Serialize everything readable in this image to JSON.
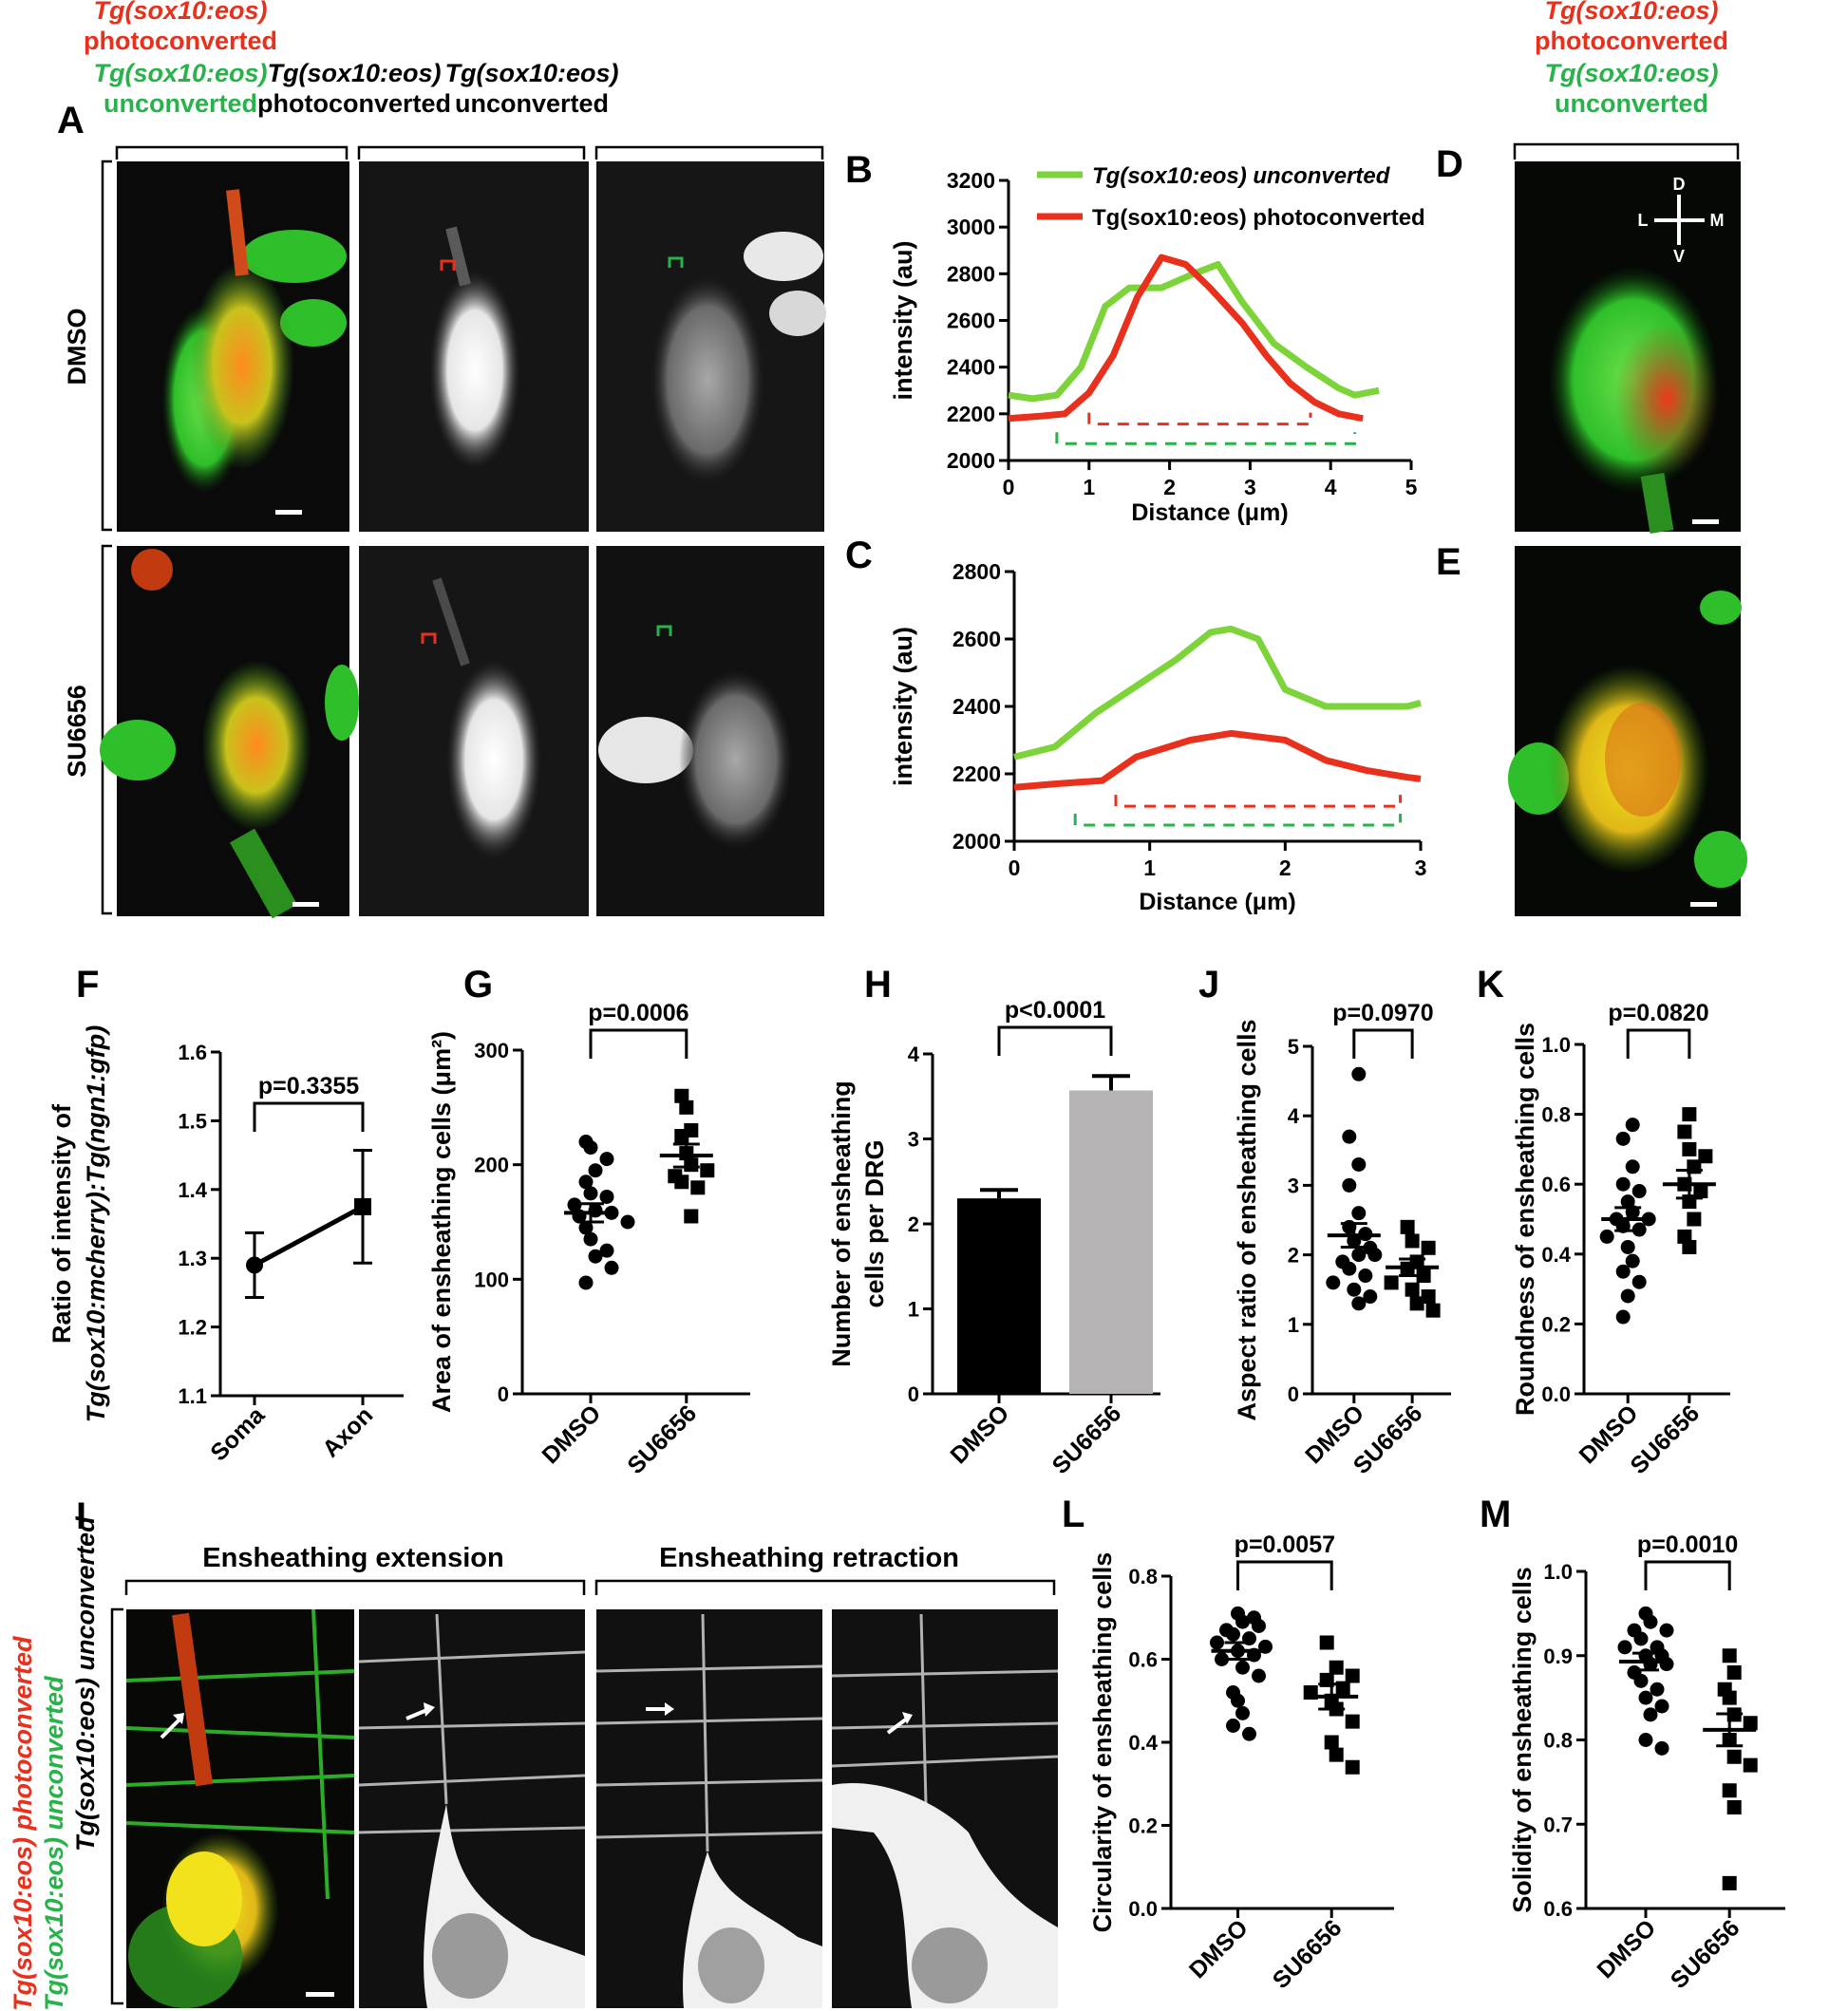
{
  "colors": {
    "red": "#e8301c",
    "green": "#27b34a",
    "lime": "#7cd43a",
    "black": "#000000",
    "grey": "#b5b3b3"
  },
  "panel_letters": [
    "A",
    "B",
    "C",
    "D",
    "E",
    "F",
    "G",
    "H",
    "I",
    "J",
    "K",
    "L",
    "M"
  ],
  "header": {
    "a_merged_red": "Tg(sox10:eos)",
    "a_merged_red2": "photoconverted",
    "a_merged_green": "Tg(sox10:eos)",
    "a_merged_green2": "unconverted",
    "a_photo_1": "Tg(sox10:eos)",
    "a_photo_2": "photoconverted",
    "a_unconv_1": "Tg(sox10:eos)",
    "a_unconv_2": "unconverted",
    "d_red": "Tg(sox10:eos)",
    "d_red2": "photoconverted",
    "d_green": "Tg(sox10:eos)",
    "d_green2": "unconverted"
  },
  "rows": {
    "dmso": "DMSO",
    "su": "SU6656"
  },
  "compass": {
    "d": "D",
    "v": "V",
    "l": "L",
    "m": "M"
  },
  "panel_i": {
    "side_red": "Tg(sox10:eos) photoconverted",
    "side_green": "Tg(sox10:eos) unconverted",
    "side_black": "Tg(sox10:eos) unconverted",
    "extension": "Ensheathing extension",
    "retraction": "Ensheathing retraction"
  },
  "chart_data": [
    {
      "panel": "B",
      "type": "line",
      "xlabel": "Distance (μm)",
      "ylabel": "intensity (au)",
      "xlim": [
        0,
        5
      ],
      "ylim": [
        2000,
        3200
      ],
      "xticks": [
        "0",
        "1",
        "2",
        "3",
        "4",
        "5"
      ],
      "yticks": [
        "2000",
        "2200",
        "2400",
        "2600",
        "2800",
        "3000",
        "3200"
      ],
      "legend": [
        "Tg(sox10:eos) unconverted",
        "Tg(sox10:eos) photoconverted"
      ],
      "series": [
        {
          "name": "Tg(sox10:eos) unconverted",
          "x": [
            0,
            0.3,
            0.6,
            0.9,
            1.2,
            1.5,
            1.9,
            2.3,
            2.6,
            2.9,
            3.3,
            3.7,
            4.1,
            4.3,
            4.6
          ],
          "y": [
            2280,
            2265,
            2280,
            2400,
            2660,
            2740,
            2740,
            2800,
            2840,
            2680,
            2500,
            2400,
            2310,
            2280,
            2300
          ]
        },
        {
          "name": "Tg(sox10:eos) photoconverted",
          "x": [
            0,
            0.4,
            0.7,
            1.0,
            1.3,
            1.6,
            1.9,
            2.2,
            2.5,
            2.9,
            3.2,
            3.5,
            3.8,
            4.1,
            4.4
          ],
          "y": [
            2180,
            2190,
            2200,
            2290,
            2450,
            2700,
            2870,
            2840,
            2740,
            2590,
            2450,
            2330,
            2250,
            2200,
            2180
          ]
        }
      ],
      "brackets": [
        {
          "color": "red",
          "x": [
            1.0,
            3.75
          ]
        },
        {
          "color": "green",
          "x": [
            0.6,
            4.3
          ]
        }
      ]
    },
    {
      "panel": "C",
      "type": "line",
      "xlabel": "Distance (μm)",
      "ylabel": "intensity (au)",
      "xlim": [
        0,
        3
      ],
      "ylim": [
        2000,
        2800
      ],
      "xticks": [
        "0",
        "1",
        "2",
        "3"
      ],
      "yticks": [
        "2000",
        "2200",
        "2400",
        "2600",
        "2800"
      ],
      "series": [
        {
          "name": "Tg(sox10:eos) unconverted",
          "x": [
            0,
            0.3,
            0.6,
            0.9,
            1.2,
            1.45,
            1.6,
            1.8,
            2.0,
            2.3,
            2.6,
            2.9,
            3.0
          ],
          "y": [
            2250,
            2280,
            2380,
            2460,
            2540,
            2620,
            2630,
            2600,
            2450,
            2400,
            2400,
            2400,
            2410
          ]
        },
        {
          "name": "Tg(sox10:eos) photoconverted",
          "x": [
            0,
            0.3,
            0.65,
            0.9,
            1.3,
            1.6,
            1.8,
            2.0,
            2.3,
            2.6,
            2.9,
            3.0
          ],
          "y": [
            2160,
            2170,
            2180,
            2250,
            2300,
            2320,
            2310,
            2300,
            2240,
            2210,
            2190,
            2185
          ]
        }
      ],
      "brackets": [
        {
          "color": "red",
          "x": [
            0.75,
            2.85
          ]
        },
        {
          "color": "green",
          "x": [
            0.45,
            2.85
          ]
        }
      ]
    },
    {
      "panel": "F",
      "type": "line",
      "ylabel_prefix": "Ratio of intensity of",
      "ylabel_main": "Tg(sox10:mcherry):Tg(ngn1:gfp)",
      "categories": [
        "Soma",
        "Axon"
      ],
      "values": [
        1.29,
        1.375
      ],
      "errors": [
        0.047,
        0.082
      ],
      "ylim": [
        1.1,
        1.6
      ],
      "yticks": [
        "1.1",
        "1.2",
        "1.3",
        "1.4",
        "1.5",
        "1.6"
      ],
      "pvalue": "p=0.3355"
    },
    {
      "panel": "G",
      "type": "scatter",
      "ylabel": "Area of ensheathing cells (μm²)",
      "categories": [
        "DMSO",
        "SU6656"
      ],
      "ylim": [
        0,
        300
      ],
      "yticks": [
        "0",
        "100",
        "200",
        "300"
      ],
      "means": [
        158,
        208
      ],
      "sem": [
        8,
        10
      ],
      "points": [
        [
          220,
          215,
          205,
          195,
          185,
          175,
          172,
          165,
          160,
          158,
          155,
          150,
          145,
          135,
          125,
          120,
          110,
          97
        ],
        [
          260,
          250,
          230,
          225,
          210,
          200,
          195,
          190,
          185,
          180,
          155
        ]
      ],
      "pvalue": "p=0.0006"
    },
    {
      "panel": "H",
      "type": "bar",
      "ylabel": "Number of ensheathing cells per DRG",
      "categories": [
        "DMSO",
        "SU6656"
      ],
      "values": [
        2.3,
        3.57
      ],
      "errors": [
        0.1,
        0.17
      ],
      "ylim": [
        0,
        4
      ],
      "yticks": [
        "0",
        "1",
        "2",
        "3",
        "4"
      ],
      "pvalue": "p<0.0001"
    },
    {
      "panel": "J",
      "type": "scatter",
      "ylabel": "Aspect ratio of ensheathing cells",
      "categories": [
        "DMSO",
        "SU6656"
      ],
      "ylim": [
        0,
        5
      ],
      "yticks": [
        "0",
        "1",
        "2",
        "3",
        "4",
        "5"
      ],
      "means": [
        2.28,
        1.82
      ],
      "sem": [
        0.17,
        0.12
      ],
      "points": [
        [
          4.6,
          3.7,
          3.3,
          3.0,
          2.6,
          2.4,
          2.3,
          2.2,
          2.1,
          2.0,
          2.0,
          1.9,
          1.8,
          1.7,
          1.6,
          1.5,
          1.4,
          1.3
        ],
        [
          2.4,
          2.2,
          2.1,
          1.9,
          1.8,
          1.7,
          1.6,
          1.5,
          1.4,
          1.3,
          1.2
        ]
      ],
      "pvalue": "p=0.0970"
    },
    {
      "panel": "K",
      "type": "scatter",
      "ylabel": "Roundness of ensheathing cells",
      "categories": [
        "DMSO",
        "SU6656"
      ],
      "ylim": [
        0,
        1.0
      ],
      "yticks": [
        "0.0",
        "0.2",
        "0.4",
        "0.6",
        "0.8",
        "1.0"
      ],
      "means": [
        0.5,
        0.6
      ],
      "sem": [
        0.033,
        0.04
      ],
      "points": [
        [
          0.77,
          0.73,
          0.65,
          0.6,
          0.58,
          0.55,
          0.52,
          0.5,
          0.5,
          0.48,
          0.47,
          0.45,
          0.42,
          0.38,
          0.35,
          0.32,
          0.28,
          0.22
        ],
        [
          0.8,
          0.75,
          0.7,
          0.68,
          0.65,
          0.6,
          0.58,
          0.55,
          0.5,
          0.45,
          0.42
        ]
      ],
      "pvalue": "p=0.0820"
    },
    {
      "panel": "L",
      "type": "scatter",
      "ylabel": "Circularity of ensheathing cells",
      "categories": [
        "DMSO",
        "SU6656"
      ],
      "ylim": [
        0,
        0.8
      ],
      "yticks": [
        "0.0",
        "0.2",
        "0.4",
        "0.6",
        "0.8"
      ],
      "means": [
        0.62,
        0.51
      ],
      "sem": [
        0.02,
        0.03
      ],
      "points": [
        [
          0.71,
          0.7,
          0.69,
          0.68,
          0.67,
          0.66,
          0.65,
          0.64,
          0.63,
          0.62,
          0.61,
          0.6,
          0.58,
          0.56,
          0.52,
          0.5,
          0.47,
          0.44,
          0.42
        ],
        [
          0.64,
          0.58,
          0.56,
          0.55,
          0.53,
          0.52,
          0.5,
          0.48,
          0.45,
          0.4,
          0.37,
          0.34
        ]
      ],
      "pvalue": "p=0.0057"
    },
    {
      "panel": "M",
      "type": "scatter",
      "ylabel": "Solidity of ensheathing cells",
      "categories": [
        "DMSO",
        "SU6656"
      ],
      "ylim": [
        0.6,
        1.0
      ],
      "yticks": [
        "0.6",
        "0.7",
        "0.8",
        "0.9",
        "1.0"
      ],
      "means": [
        0.893,
        0.812
      ],
      "sem": [
        0.01,
        0.019
      ],
      "points": [
        [
          0.95,
          0.94,
          0.93,
          0.93,
          0.92,
          0.91,
          0.91,
          0.9,
          0.9,
          0.89,
          0.89,
          0.88,
          0.87,
          0.86,
          0.85,
          0.84,
          0.83,
          0.8,
          0.79
        ],
        [
          0.9,
          0.88,
          0.86,
          0.85,
          0.83,
          0.82,
          0.8,
          0.78,
          0.77,
          0.74,
          0.72,
          0.63
        ]
      ],
      "pvalue": "p=0.0010"
    }
  ]
}
